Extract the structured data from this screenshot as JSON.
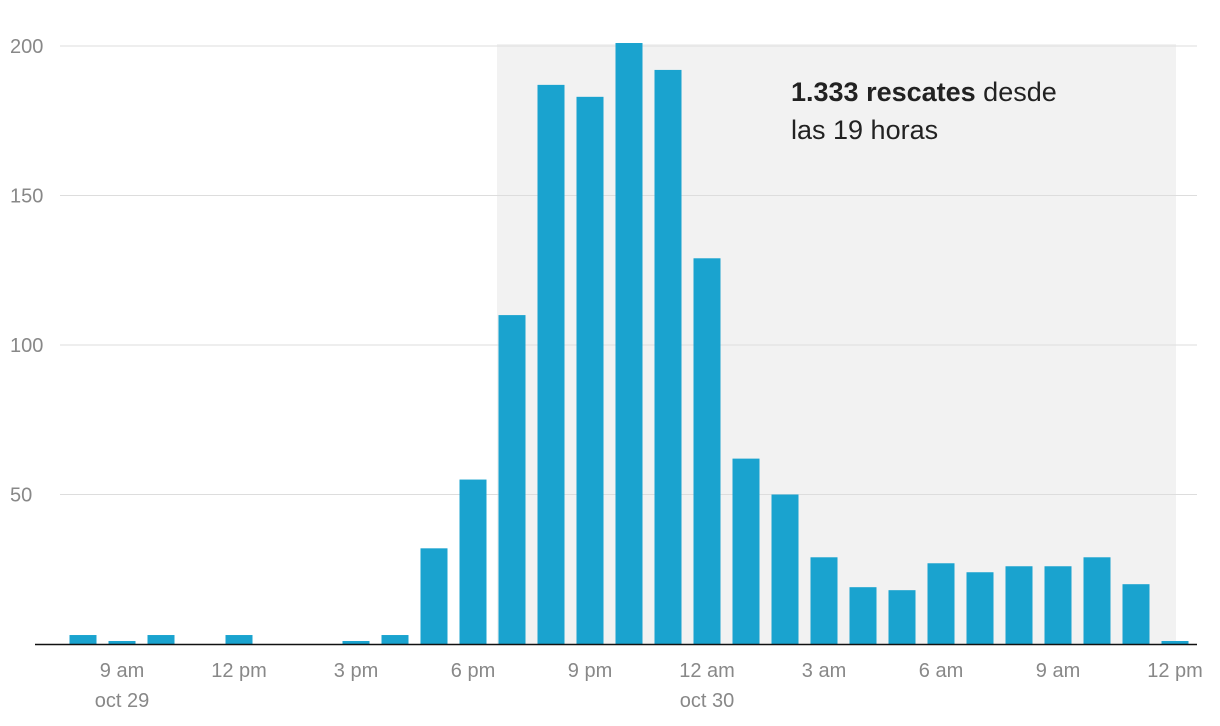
{
  "chart_data": {
    "type": "bar",
    "color": "#1aa3cf",
    "categories": [
      null,
      "9 am",
      null,
      null,
      "12 pm",
      null,
      null,
      "3 pm",
      null,
      null,
      "6 pm",
      null,
      null,
      "9 pm",
      null,
      null,
      "12 am",
      null,
      null,
      "3 am",
      null,
      null,
      "6 am",
      null,
      null,
      "9 am",
      null,
      null,
      "12 pm"
    ],
    "category_dates": [
      null,
      "oct 29",
      null,
      null,
      null,
      null,
      null,
      null,
      null,
      null,
      null,
      null,
      null,
      null,
      null,
      null,
      "oct 30",
      null,
      null,
      null,
      null,
      null,
      null,
      null,
      null,
      null,
      null,
      null,
      null
    ],
    "values": [
      3,
      1,
      3,
      0,
      3,
      0,
      0,
      1,
      3,
      32,
      55,
      110,
      187,
      183,
      201,
      192,
      129,
      62,
      50,
      29,
      19,
      18,
      27,
      24,
      26,
      26,
      29,
      20,
      1
    ],
    "ylim": [
      0,
      200
    ],
    "yticks": [
      50,
      100,
      150,
      200
    ],
    "grid": true,
    "annotation": {
      "bold": "1.333 rescates",
      "rest": " desde",
      "line2": "las 19 horas"
    }
  }
}
